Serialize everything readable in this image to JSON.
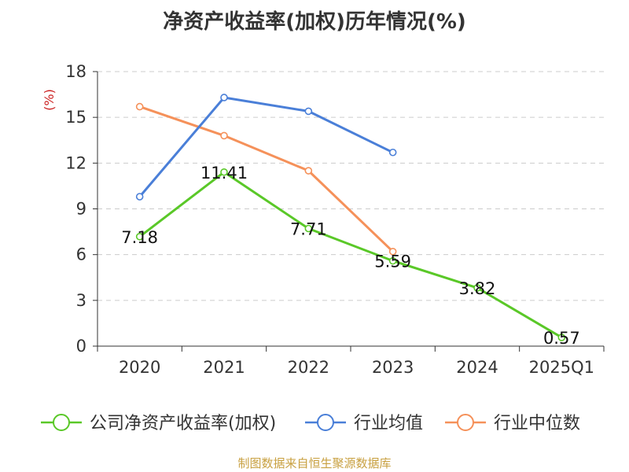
{
  "chart_data": {
    "type": "line",
    "title": "净资产收益率(加权)历年情况(%)",
    "xlabel": "",
    "ylabel": "(%)",
    "categories": [
      "2020",
      "2021",
      "2022",
      "2023",
      "2024",
      "2025Q1"
    ],
    "ylim": [
      0,
      18
    ],
    "yticks": [
      0,
      3,
      6,
      9,
      12,
      15,
      18
    ],
    "grid": true,
    "legend_position": "bottom",
    "series": [
      {
        "name": "公司净资产收益率(加权)",
        "color": "#5ac828",
        "values": [
          7.18,
          11.41,
          7.71,
          5.59,
          3.82,
          0.57
        ],
        "data_labels": [
          "7.18",
          "11.41",
          "7.71",
          "5.59",
          "3.82",
          "0.57"
        ]
      },
      {
        "name": "行业均值",
        "color": "#4a7fd8",
        "values": [
          9.8,
          16.3,
          15.4,
          12.7,
          null,
          null
        ]
      },
      {
        "name": "行业中位数",
        "color": "#f5915a",
        "values": [
          15.7,
          13.8,
          11.5,
          6.2,
          null,
          null
        ]
      }
    ],
    "source": "制图数据来自恒生聚源数据库",
    "colors": {
      "axis": "#333333",
      "grid": "#cccccc",
      "ylabel": "#cc2222",
      "source": "#c8a040"
    }
  }
}
